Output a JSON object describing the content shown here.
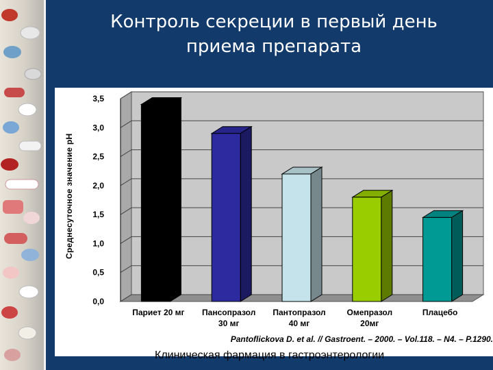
{
  "slide": {
    "title_line1": "Контроль секреции в первый день",
    "title_line2": "приема препарата",
    "citation": "Pantoflickova D. et al. // Gastroent. – 2000. – Vol.118. – N4. – P.1290.",
    "footer": "Клиническая фармация в гастроэнтерологии"
  },
  "chart_data": {
    "type": "bar",
    "title": "",
    "xlabel": "",
    "ylabel": "Среднесуточное значение pH",
    "ylim": [
      0,
      3.5
    ],
    "yticks": [
      "0,0",
      "0,5",
      "1,0",
      "1,5",
      "2,0",
      "2,5",
      "3,0",
      "3,5"
    ],
    "grid": true,
    "legend": "none",
    "categories": [
      [
        "Париет 20 мг"
      ],
      [
        "Пансопразол",
        "30 мг"
      ],
      [
        "Пантопразол",
        "40 мг"
      ],
      [
        "Омепразол",
        "20мг"
      ],
      [
        "Плацебо"
      ]
    ],
    "values": [
      3.4,
      2.9,
      2.2,
      1.8,
      1.45
    ],
    "colors": [
      "#000000",
      "#2d2aa0",
      "#c5e3ea",
      "#9acd00",
      "#009a95"
    ]
  }
}
